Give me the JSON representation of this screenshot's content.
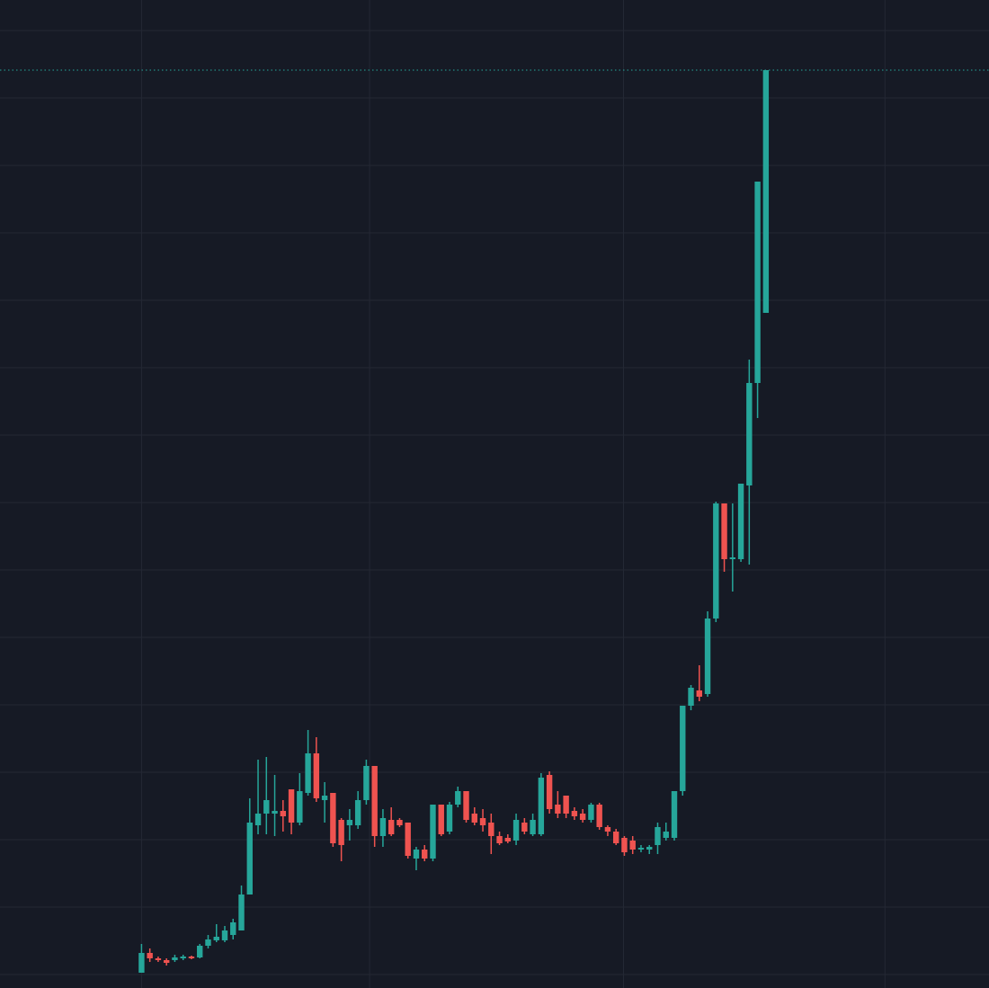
{
  "chart_data": {
    "type": "candlestick",
    "x": [
      0,
      1,
      2,
      3,
      4,
      5,
      6,
      7,
      8,
      9,
      10,
      11,
      12,
      13,
      14,
      15,
      16,
      17,
      18,
      19,
      20,
      21,
      22,
      23,
      24,
      25,
      26,
      27,
      28,
      29,
      30,
      31,
      32,
      33,
      34,
      35,
      36,
      37,
      38,
      39,
      40,
      41,
      42,
      43,
      44,
      45,
      46,
      47,
      48,
      49,
      50,
      51,
      52,
      53,
      54,
      55,
      56,
      57,
      58,
      59,
      60,
      61,
      62,
      63,
      64,
      65,
      66,
      67,
      68,
      69,
      70,
      71,
      72,
      73,
      74,
      75
    ],
    "open": [
      2,
      24,
      18,
      16,
      16,
      18,
      20,
      19,
      32,
      38,
      38,
      44,
      49,
      89,
      166,
      179,
      179,
      182,
      206,
      169,
      202,
      246,
      194,
      202,
      172,
      166,
      166,
      194,
      232,
      154,
      172,
      172,
      169,
      129,
      139,
      129,
      189,
      159,
      189,
      204,
      179,
      174,
      169,
      154,
      152,
      149,
      169,
      156,
      156,
      222,
      189,
      199,
      182,
      179,
      172,
      189,
      164,
      159,
      152,
      149,
      139,
      139,
      144,
      152,
      152,
      204,
      299,
      316,
      312,
      396,
      524,
      462,
      462,
      544,
      658,
      736
    ],
    "high": [
      34,
      29,
      20,
      18,
      22,
      22,
      21,
      34,
      44,
      56,
      54,
      62,
      99,
      196,
      239,
      242,
      222,
      194,
      206,
      224,
      272,
      264,
      214,
      202,
      174,
      184,
      204,
      239,
      232,
      184,
      186,
      174,
      169,
      142,
      144,
      189,
      189,
      192,
      209,
      204,
      186,
      184,
      179,
      159,
      156,
      179,
      174,
      179,
      224,
      226,
      204,
      199,
      186,
      184,
      191,
      191,
      166,
      162,
      154,
      154,
      144,
      144,
      169,
      169,
      204,
      299,
      322,
      344,
      404,
      526,
      524,
      524,
      546,
      684,
      882,
      1006
    ],
    "low": [
      2,
      14,
      14,
      10,
      14,
      16,
      17,
      18,
      29,
      36,
      36,
      39,
      49,
      89,
      156,
      156,
      154,
      159,
      156,
      166,
      199,
      192,
      169,
      142,
      126,
      149,
      162,
      189,
      142,
      142,
      154,
      164,
      129,
      116,
      126,
      126,
      154,
      156,
      186,
      169,
      166,
      159,
      134,
      144,
      146,
      144,
      156,
      154,
      154,
      179,
      174,
      174,
      172,
      169,
      169,
      161,
      154,
      144,
      132,
      134,
      136,
      134,
      134,
      149,
      149,
      199,
      294,
      304,
      309,
      392,
      448,
      426,
      459,
      456,
      619,
      736
    ],
    "close": [
      24,
      18,
      16,
      13,
      19,
      20,
      18,
      32,
      39,
      42,
      49,
      58,
      89,
      169,
      179,
      194,
      182,
      176,
      169,
      204,
      246,
      196,
      199,
      146,
      144,
      172,
      194,
      232,
      154,
      174,
      156,
      166,
      132,
      139,
      129,
      189,
      156,
      189,
      204,
      172,
      169,
      166,
      154,
      146,
      148,
      172,
      159,
      172,
      219,
      184,
      179,
      179,
      176,
      172,
      189,
      164,
      159,
      146,
      136,
      139,
      141,
      142,
      164,
      159,
      204,
      299,
      319,
      309,
      396,
      524,
      462,
      464,
      546,
      658,
      882,
      1006
    ],
    "up_color": "#26a69a",
    "down_color": "#ef5350",
    "background": "#161a25",
    "xlim": [
      -17,
      101.8
    ],
    "xticks": [
      0,
      27.4,
      57.9,
      89.3
    ],
    "ylim": [
      -15,
      1084
    ],
    "yticks": [
      0,
      75,
      150,
      225,
      300,
      375,
      450,
      525,
      600,
      675,
      750,
      825,
      900,
      975,
      1050
    ],
    "grid": true,
    "price_line": true
  }
}
